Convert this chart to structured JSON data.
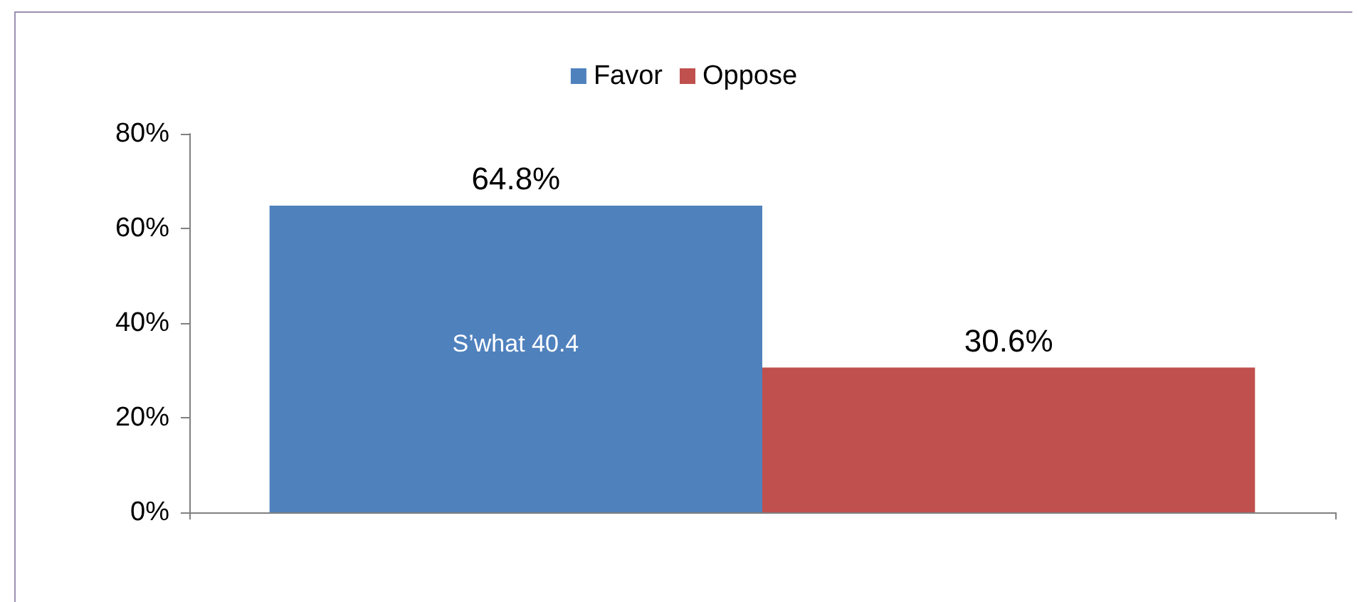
{
  "chart_data": {
    "type": "bar",
    "categories": [
      null
    ],
    "series": [
      {
        "name": "Favor",
        "color": "#4f81bd",
        "values": [
          64.8
        ],
        "value_labels": [
          "64.8%"
        ]
      },
      {
        "name": "Oppose",
        "color": "#c0504d",
        "values": [
          30.6
        ],
        "value_labels": [
          "30.6%"
        ]
      }
    ],
    "ylim": [
      0,
      80
    ],
    "yticks": [
      {
        "value": 0,
        "label": "0%"
      },
      {
        "value": 20,
        "label": "20%"
      },
      {
        "value": 40,
        "label": "40%"
      },
      {
        "value": 60,
        "label": "60%"
      },
      {
        "value": 80,
        "label": "80%"
      }
    ],
    "grid": false,
    "legend": "top",
    "annotations": [
      "S’what 40.4"
    ]
  }
}
